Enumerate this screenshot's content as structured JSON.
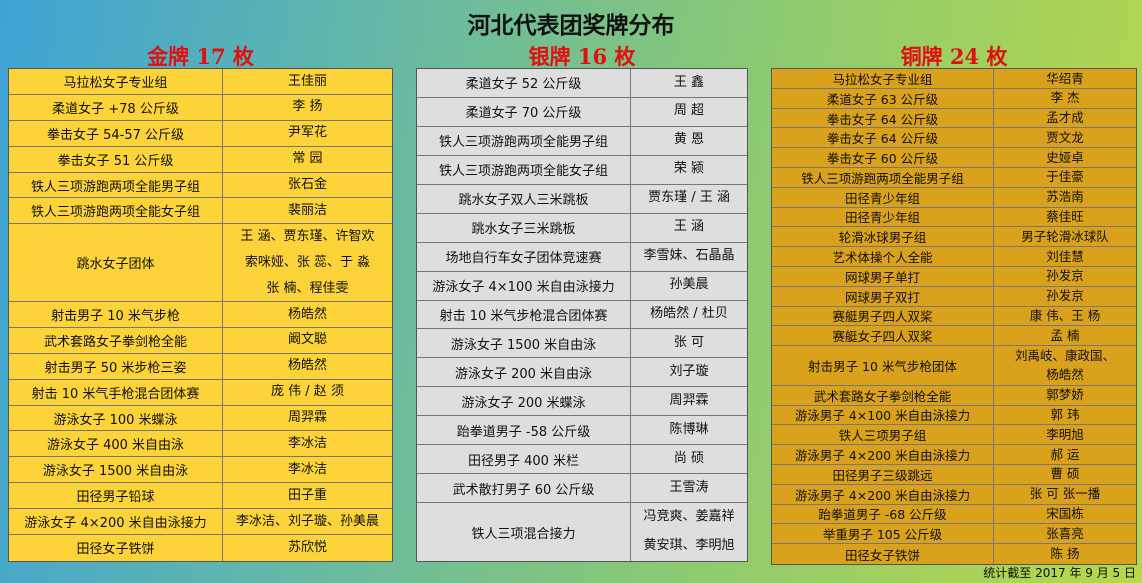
{
  "title": "河北代表团奖牌分布",
  "sections": [
    {
      "heading": "金牌 17 枚",
      "rows": [
        [
          "马拉松女子专业组",
          [
            "王佳丽"
          ]
        ],
        [
          "柔道女子 +78 公斤级",
          [
            "李 扬"
          ]
        ],
        [
          "拳击女子 54-57 公斤级",
          [
            "尹军花"
          ]
        ],
        [
          "拳击女子 51 公斤级",
          [
            "常 园"
          ]
        ],
        [
          "铁人三项游跑两项全能男子组",
          [
            "张石金"
          ]
        ],
        [
          "铁人三项游跑两项全能女子组",
          [
            "裴丽洁"
          ]
        ],
        [
          "跳水女子团体",
          [
            "王 涵、贾东瑾、许智欢",
            "索咪娅、张 蕊、于 淼",
            "张 楠、程佳雯"
          ]
        ],
        [
          "射击男子 10 米气步枪",
          [
            "杨皓然"
          ]
        ],
        [
          "武术套路女子拳剑枪全能",
          [
            "阚文聪"
          ]
        ],
        [
          "射击男子 50 米步枪三姿",
          [
            "杨皓然"
          ]
        ],
        [
          "射击 10 米气手枪混合团体赛",
          [
            "庞 伟 / 赵 须"
          ]
        ],
        [
          "游泳女子 100 米蝶泳",
          [
            "周羿霖"
          ]
        ],
        [
          "游泳女子 400 米自由泳",
          [
            "李冰洁"
          ]
        ],
        [
          "游泳女子 1500 米自由泳",
          [
            "李冰洁"
          ]
        ],
        [
          "田径男子铅球",
          [
            "田子重"
          ]
        ],
        [
          "游泳女子 4×200 米自由泳接力",
          [
            "李冰洁、刘子璇、孙美晨"
          ]
        ],
        [
          "田径女子铁饼",
          [
            "苏欣悦"
          ]
        ]
      ]
    },
    {
      "heading": "银牌 16 枚",
      "rows": [
        [
          "柔道女子 52 公斤级",
          [
            "王 鑫"
          ]
        ],
        [
          "柔道女子 70 公斤级",
          [
            "周 超"
          ]
        ],
        [
          "铁人三项游跑两项全能男子组",
          [
            "黄 恩"
          ]
        ],
        [
          "铁人三项游跑两项全能女子组",
          [
            "荣 颍"
          ]
        ],
        [
          "跳水女子双人三米跳板",
          [
            "贾东瑾 / 王 涵"
          ]
        ],
        [
          "跳水女子三米跳板",
          [
            "王 涵"
          ]
        ],
        [
          "场地自行车女子团体竞速赛",
          [
            "李雪妹、石晶晶"
          ]
        ],
        [
          "游泳女子 4×100 米自由泳接力",
          [
            "孙美晨"
          ]
        ],
        [
          "射击 10 米气步枪混合团体赛",
          [
            "杨皓然 / 杜贝"
          ]
        ],
        [
          "游泳女子 1500 米自由泳",
          [
            "张 可"
          ]
        ],
        [
          "游泳女子 200 米自由泳",
          [
            "刘子璇"
          ]
        ],
        [
          "游泳女子 200 米蝶泳",
          [
            "周羿霖"
          ]
        ],
        [
          "跆拳道男子 -58 公斤级",
          [
            "陈博琳"
          ]
        ],
        [
          "田径男子 400 米栏",
          [
            "尚 硕"
          ]
        ],
        [
          "武术散打男子 60 公斤级",
          [
            "王雪涛"
          ]
        ],
        [
          "铁人三项混合接力",
          [
            "冯竞爽、姜嘉祥",
            "黄安琪、李明旭"
          ]
        ]
      ]
    },
    {
      "heading": "铜牌 24 枚",
      "rows": [
        [
          "马拉松女子专业组",
          [
            "华绍青"
          ]
        ],
        [
          "柔道女子 63 公斤级",
          [
            "李 杰"
          ]
        ],
        [
          "拳击女子 64 公斤级",
          [
            "孟才成"
          ]
        ],
        [
          "拳击女子 64 公斤级",
          [
            "贾文龙"
          ]
        ],
        [
          "拳击女子 60 公斤级",
          [
            "史娅卓"
          ]
        ],
        [
          "铁人三项游跑两项全能男子组",
          [
            "于佳豪"
          ]
        ],
        [
          "田径青少年组",
          [
            "苏浩南"
          ]
        ],
        [
          "田径青少年组",
          [
            "蔡佳旺"
          ]
        ],
        [
          "轮滑冰球男子组",
          [
            "男子轮滑冰球队"
          ]
        ],
        [
          "艺术体操个人全能",
          [
            "刘佳慧"
          ]
        ],
        [
          "网球男子单打",
          [
            "孙发京"
          ]
        ],
        [
          "网球男子双打",
          [
            "孙发京"
          ]
        ],
        [
          "赛艇男子四人双桨",
          [
            "康 伟、王 杨"
          ]
        ],
        [
          "赛艇女子四人双桨",
          [
            "孟 楠"
          ]
        ],
        [
          "射击男子 10 米气步枪团体",
          [
            "刘禹岐、康政国、",
            "杨皓然"
          ]
        ],
        [
          "武术套路女子拳剑枪全能",
          [
            "郭梦娇"
          ]
        ],
        [
          "游泳男子 4×100 米自由泳接力",
          [
            "郭 玮"
          ]
        ],
        [
          "铁人三项男子组",
          [
            "李明旭"
          ]
        ],
        [
          "游泳男子 4×200 米自由泳接力",
          [
            "郝 运"
          ]
        ],
        [
          "田径男子三级跳远",
          [
            "曹 硕"
          ]
        ],
        [
          "游泳男子 4×200 米自由泳接力",
          [
            "张 可 张一播"
          ]
        ],
        [
          "跆拳道男子 -68 公斤级",
          [
            "宋国栋"
          ]
        ],
        [
          "举重男子 105 公斤级",
          [
            "张喜亮"
          ]
        ],
        [
          "田径女子铁饼",
          [
            "陈 扬"
          ]
        ]
      ]
    }
  ],
  "footer": "统计截至 2017 年 9 月 5 日"
}
